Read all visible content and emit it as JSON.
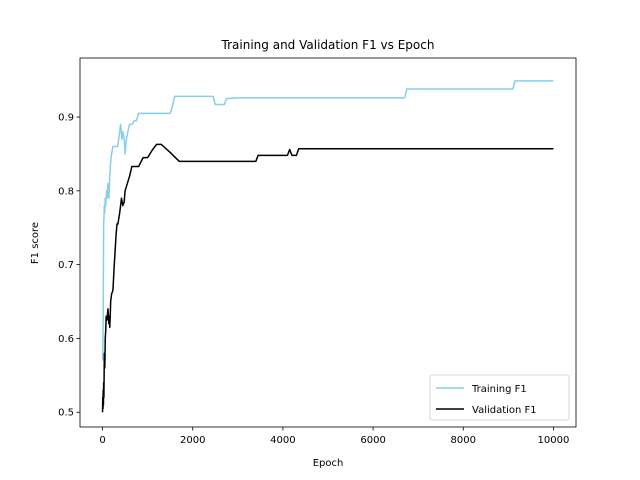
{
  "chart_data": {
    "type": "line",
    "title": "Training and Validation F1 vs Epoch",
    "xlabel": "Epoch",
    "ylabel": "F1 score",
    "xlim": [
      -500,
      10500
    ],
    "ylim": [
      0.48,
      0.98
    ],
    "xticks": [
      0,
      2000,
      4000,
      6000,
      8000,
      10000
    ],
    "xtick_labels": [
      "0",
      "2000",
      "4000",
      "6000",
      "8000",
      "10000"
    ],
    "yticks": [
      0.5,
      0.6,
      0.7,
      0.8,
      0.9
    ],
    "ytick_labels": [
      "0.5",
      "0.6",
      "0.7",
      "0.8",
      "0.9"
    ],
    "grid": false,
    "legend_position": "bottom-right",
    "series": [
      {
        "name": "Training F1",
        "color": "#87ceeb",
        "x": [
          0,
          5,
          10,
          15,
          20,
          25,
          30,
          40,
          50,
          60,
          70,
          80,
          90,
          100,
          120,
          140,
          160,
          180,
          200,
          230,
          260,
          300,
          330,
          360,
          400,
          430,
          450,
          480,
          500,
          530,
          560,
          600,
          650,
          700,
          750,
          800,
          1000,
          1200,
          1500,
          1550,
          1600,
          1800,
          2000,
          2450,
          2500,
          2700,
          2750,
          3000,
          5000,
          6700,
          6750,
          8000,
          9100,
          9150,
          10000
        ],
        "y": [
          0.57,
          0.58,
          0.6,
          0.64,
          0.7,
          0.76,
          0.76,
          0.78,
          0.77,
          0.79,
          0.78,
          0.79,
          0.8,
          0.79,
          0.81,
          0.79,
          0.82,
          0.84,
          0.85,
          0.86,
          0.86,
          0.86,
          0.86,
          0.87,
          0.89,
          0.87,
          0.88,
          0.87,
          0.85,
          0.87,
          0.88,
          0.89,
          0.89,
          0.895,
          0.895,
          0.905,
          0.905,
          0.905,
          0.905,
          0.915,
          0.928,
          0.928,
          0.928,
          0.928,
          0.917,
          0.917,
          0.925,
          0.926,
          0.926,
          0.926,
          0.938,
          0.938,
          0.938,
          0.949,
          0.949
        ]
      },
      {
        "name": "Validation F1",
        "color": "#000000",
        "x": [
          0,
          5,
          10,
          15,
          20,
          25,
          30,
          40,
          50,
          60,
          70,
          80,
          100,
          120,
          140,
          150,
          160,
          170,
          180,
          200,
          230,
          260,
          300,
          320,
          340,
          380,
          420,
          450,
          480,
          500,
          550,
          600,
          650,
          700,
          800,
          900,
          1000,
          1100,
          1200,
          1300,
          1500,
          1700,
          2000,
          2500,
          3000,
          3400,
          3450,
          4000,
          4100,
          4150,
          4200,
          4300,
          4350,
          5000,
          6000,
          7000,
          8000,
          9000,
          10000
        ],
        "y": [
          0.5,
          0.52,
          0.505,
          0.53,
          0.51,
          0.54,
          0.52,
          0.58,
          0.56,
          0.6,
          0.61,
          0.63,
          0.625,
          0.64,
          0.62,
          0.63,
          0.615,
          0.63,
          0.65,
          0.66,
          0.665,
          0.7,
          0.74,
          0.755,
          0.755,
          0.77,
          0.79,
          0.78,
          0.785,
          0.8,
          0.81,
          0.82,
          0.833,
          0.833,
          0.833,
          0.845,
          0.845,
          0.855,
          0.863,
          0.863,
          0.852,
          0.84,
          0.84,
          0.84,
          0.84,
          0.84,
          0.848,
          0.848,
          0.848,
          0.856,
          0.848,
          0.848,
          0.857,
          0.857,
          0.857,
          0.857,
          0.857,
          0.857,
          0.857
        ]
      }
    ]
  }
}
